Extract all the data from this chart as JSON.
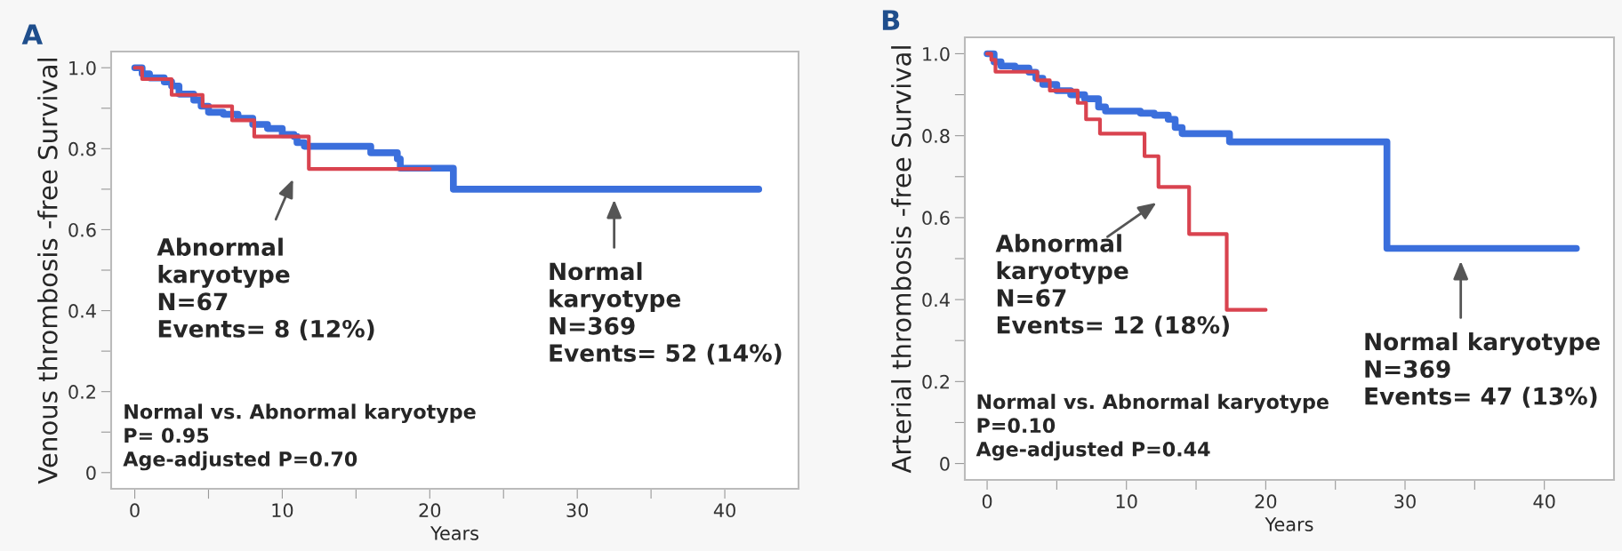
{
  "chart_data": [
    {
      "type": "step",
      "title": "A",
      "xlabel": "Years",
      "ylabel": "Venous thrombosis -free Survival",
      "xlim": [
        -1.6,
        45
      ],
      "ylim": [
        -0.04,
        1.04
      ],
      "xticks": [
        0,
        {
          "value": 5,
          "label": null
        },
        10,
        {
          "value": 15,
          "label": null
        },
        20,
        {
          "value": 25,
          "label": null
        },
        30,
        {
          "value": 35,
          "label": null
        },
        40
      ],
      "yticks": [
        0,
        {
          "value": 0.1,
          "label": null
        },
        0.2,
        {
          "value": 0.3,
          "label": null
        },
        0.4,
        {
          "value": 0.5,
          "label": null
        },
        0.6,
        {
          "value": 0.7,
          "label": null
        },
        0.8,
        {
          "value": 0.9,
          "label": null
        },
        {
          "value": 1,
          "label": "1.0"
        }
      ],
      "grid": false,
      "legend": false,
      "series": [
        {
          "color": "#3b6fdc",
          "x": [
            0,
            0.5,
            1,
            2,
            2.5,
            3,
            4,
            4.5,
            5,
            6,
            7,
            8,
            9,
            10,
            10.8,
            11,
            11.5,
            16,
            17.8,
            18,
            21.6,
            42.3
          ],
          "values": [
            1.0,
            0.985,
            0.975,
            0.965,
            0.955,
            0.935,
            0.92,
            0.905,
            0.89,
            0.885,
            0.875,
            0.86,
            0.85,
            0.835,
            0.83,
            0.815,
            0.806,
            0.79,
            0.775,
            0.752,
            0.7,
            0.7
          ]
        },
        {
          "color": "#d9434f",
          "x": [
            0,
            0.5,
            2.5,
            4.6,
            6.6,
            8.1,
            11.8,
            20
          ],
          "values": [
            1.0,
            0.972,
            0.933,
            0.905,
            0.87,
            0.83,
            0.75,
            0.75
          ]
        }
      ],
      "annotations": [
        "Abnormal\nkaryotype\nN=67\nEvents= 8 (12%)",
        "Normal\nkaryotype\nN=369\nEvents= 52 (14%)",
        "Normal vs. Abnormal karyotype\nP= 0.95\nAge-adjusted P=0.70"
      ]
    },
    {
      "type": "step",
      "title": "B",
      "xlabel": "Years",
      "ylabel": "Arterial thrombosis -free Survival",
      "xlim": [
        -1.6,
        45
      ],
      "ylim": [
        -0.04,
        1.04
      ],
      "xticks": [
        0,
        {
          "value": 5,
          "label": null
        },
        10,
        {
          "value": 15,
          "label": null
        },
        20,
        {
          "value": 25,
          "label": null
        },
        30,
        {
          "value": 35,
          "label": null
        },
        40
      ],
      "yticks": [
        0,
        {
          "value": 0.1,
          "label": null
        },
        0.2,
        {
          "value": 0.3,
          "label": null
        },
        0.4,
        {
          "value": 0.5,
          "label": null
        },
        0.6,
        {
          "value": 0.7,
          "label": null
        },
        0.8,
        {
          "value": 0.9,
          "label": null
        },
        {
          "value": 1,
          "label": "1.0"
        }
      ],
      "grid": false,
      "legend": false,
      "series": [
        {
          "color": "#3b6fdc",
          "x": [
            0,
            0.5,
            1,
            2,
            3,
            3.5,
            4,
            5,
            6,
            7,
            8,
            8.5,
            11,
            12,
            13,
            13.5,
            14,
            17.4,
            28.7,
            42.3
          ],
          "values": [
            1.0,
            0.98,
            0.97,
            0.965,
            0.955,
            0.94,
            0.925,
            0.91,
            0.9,
            0.89,
            0.87,
            0.86,
            0.855,
            0.85,
            0.84,
            0.82,
            0.805,
            0.785,
            0.525,
            0.525
          ]
        },
        {
          "color": "#d9434f",
          "x": [
            0,
            0.3,
            0.6,
            3.6,
            4.5,
            6.5,
            7.1,
            8.1,
            11.3,
            12.3,
            14.5,
            17.2,
            20
          ],
          "values": [
            1.0,
            0.985,
            0.956,
            0.935,
            0.91,
            0.88,
            0.84,
            0.805,
            0.75,
            0.675,
            0.56,
            0.375,
            0.375
          ]
        }
      ],
      "annotations": [
        "Abnormal\nkaryotype\nN=67\nEvents= 12 (18%)",
        "Normal karyotype\nN=369\nEvents= 47 (13%)",
        "Normal vs. Abnormal karyotype\nP=0.10\nAge-adjusted P=0.44"
      ]
    }
  ]
}
